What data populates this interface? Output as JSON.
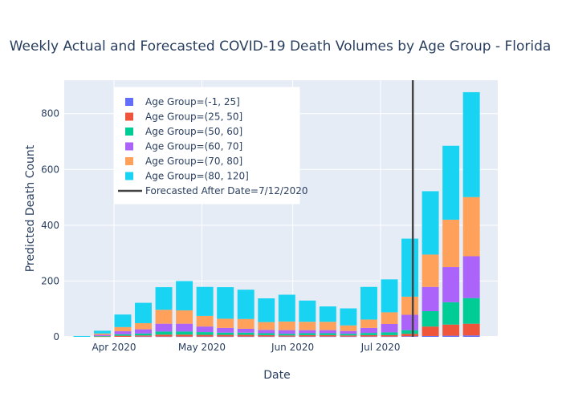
{
  "chart_data": {
    "type": "bar",
    "stacked": true,
    "title": "Weekly Actual and Forecasted COVID-19 Death Volumes by Age Group - Florida",
    "xlabel": "Date",
    "ylabel": "Predicted Death Count",
    "ylim": [
      0,
      920
    ],
    "y_ticks": [
      0,
      200,
      400,
      600,
      800
    ],
    "x_ticks": [
      {
        "label": "Apr 2020",
        "date": "2020-04-01"
      },
      {
        "label": "May 2020",
        "date": "2020-05-01"
      },
      {
        "label": "Jun 2020",
        "date": "2020-06-01"
      },
      {
        "label": "Jul 2020",
        "date": "2020-07-01"
      }
    ],
    "x_range": [
      "2020-03-15",
      "2020-08-10"
    ],
    "grid": true,
    "legend_position": "top-left",
    "dates": [
      "2020-03-21",
      "2020-03-28",
      "2020-04-04",
      "2020-04-11",
      "2020-04-18",
      "2020-04-25",
      "2020-05-02",
      "2020-05-09",
      "2020-05-16",
      "2020-05-23",
      "2020-05-30",
      "2020-06-06",
      "2020-06-13",
      "2020-06-20",
      "2020-06-27",
      "2020-07-04",
      "2020-07-11",
      "2020-07-18",
      "2020-07-25",
      "2020-08-01"
    ],
    "series": [
      {
        "name": "Age Group=(-1, 25]",
        "color": "#636efa",
        "values": [
          0,
          0,
          0,
          1,
          1,
          1,
          1,
          1,
          1,
          1,
          1,
          1,
          1,
          1,
          1,
          1,
          2,
          3,
          4,
          5
        ]
      },
      {
        "name": "Age Group=(25, 50]",
        "color": "#ef553b",
        "values": [
          0,
          1,
          4,
          4,
          7,
          7,
          6,
          6,
          6,
          5,
          4,
          5,
          5,
          4,
          5,
          5,
          9,
          34,
          40,
          42
        ]
      },
      {
        "name": "Age Group=(50, 60]",
        "color": "#00cc96",
        "values": [
          0,
          2,
          5,
          7,
          11,
          11,
          10,
          8,
          8,
          7,
          6,
          7,
          7,
          6,
          8,
          10,
          13,
          55,
          80,
          92
        ]
      },
      {
        "name": "Age Group=(60, 70]",
        "color": "#ab63fa",
        "values": [
          0,
          4,
          11,
          15,
          28,
          28,
          20,
          17,
          14,
          12,
          13,
          11,
          11,
          10,
          18,
          30,
          55,
          87,
          126,
          150
        ]
      },
      {
        "name": "Age Group=(70, 80]",
        "color": "#ffa15a",
        "values": [
          0,
          5,
          15,
          22,
          50,
          48,
          38,
          33,
          35,
          28,
          31,
          30,
          30,
          20,
          30,
          42,
          65,
          116,
          170,
          212
        ]
      },
      {
        "name": "Age Group=(80, 120]",
        "color": "#19d3f3",
        "values": [
          3,
          10,
          45,
          73,
          81,
          105,
          104,
          113,
          105,
          85,
          96,
          76,
          55,
          61,
          117,
          118,
          208,
          227,
          265,
          376
        ]
      }
    ],
    "forecast_line": {
      "name": "Forecasted After Date=7/12/2020",
      "date": "2020-07-12",
      "color": "#444444"
    }
  }
}
